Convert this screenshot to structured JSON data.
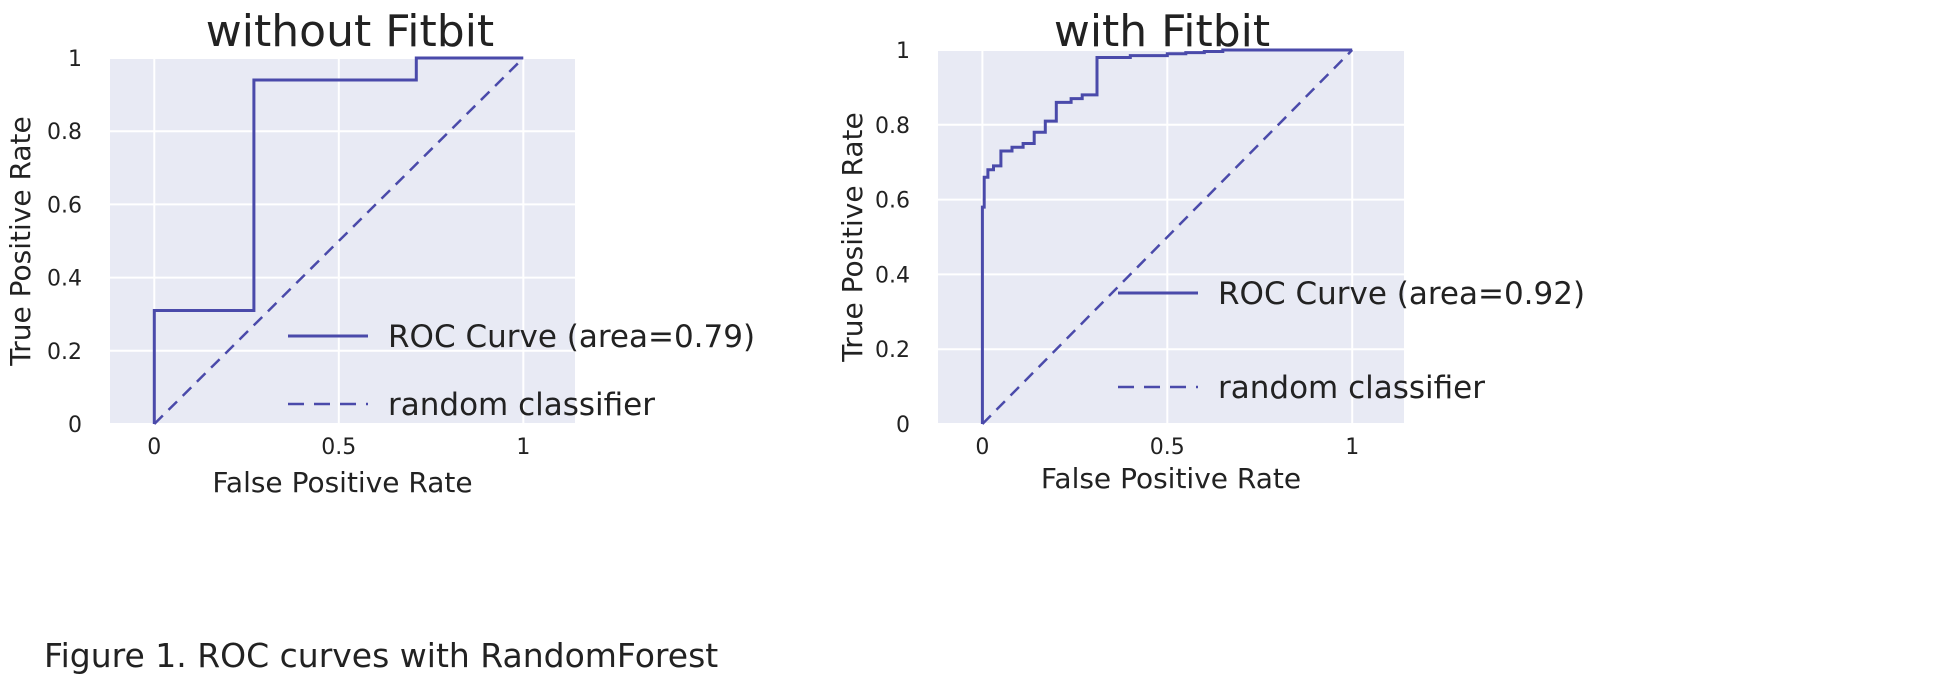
{
  "caption": "Figure 1. ROC curves with RandomForest",
  "chart_data": [
    {
      "type": "line",
      "title": "without Fitbit",
      "xlabel": "False Positive Rate",
      "ylabel": "True Positive Rate",
      "xlim": [
        -0.12,
        1.14
      ],
      "ylim": [
        0,
        1
      ],
      "xticks": [
        0,
        0.5,
        1
      ],
      "xtick_labels": [
        "0",
        "0.5",
        "1"
      ],
      "yticks": [
        0,
        0.2,
        0.4,
        0.6,
        0.8,
        1
      ],
      "ytick_labels": [
        "0",
        "0.2",
        "0.4",
        "0.6",
        "0.8",
        "1"
      ],
      "grid": true,
      "legend": "bottom-right",
      "series": [
        {
          "name": "ROC Curve (area=0.79)",
          "style": "solid",
          "color": "#4a4aaa",
          "x": [
            0,
            0,
            0.27,
            0.27,
            0.71,
            0.71,
            1
          ],
          "y": [
            0,
            0.31,
            0.31,
            0.94,
            0.94,
            1,
            1
          ]
        },
        {
          "name": "random classifier",
          "style": "dashed",
          "color": "#4a4aaa",
          "x": [
            0,
            1
          ],
          "y": [
            0,
            1
          ]
        }
      ]
    },
    {
      "type": "line",
      "title": "with Fitbit",
      "xlabel": "False Positive Rate",
      "ylabel": "True Positive Rate",
      "xlim": [
        -0.12,
        1.14
      ],
      "ylim": [
        0,
        1
      ],
      "xticks": [
        0,
        0.5,
        1
      ],
      "xtick_labels": [
        "0",
        "0.5",
        "1"
      ],
      "yticks": [
        0,
        0.2,
        0.4,
        0.6,
        0.8,
        1
      ],
      "ytick_labels": [
        "0",
        "0.2",
        "0.4",
        "0.6",
        "0.8",
        "1"
      ],
      "grid": true,
      "legend": "bottom-right",
      "series": [
        {
          "name": "ROC Curve (area=0.92)",
          "style": "solid",
          "color": "#4a4aaa",
          "x": [
            0,
            0,
            0.005,
            0.005,
            0.015,
            0.015,
            0.03,
            0.03,
            0.05,
            0.05,
            0.08,
            0.08,
            0.11,
            0.11,
            0.14,
            0.14,
            0.17,
            0.17,
            0.2,
            0.2,
            0.24,
            0.24,
            0.27,
            0.27,
            0.31,
            0.31,
            0.4,
            0.4,
            0.5,
            0.5,
            0.55,
            0.55,
            0.6,
            0.6,
            0.65,
            0.65,
            0.7,
            1
          ],
          "y": [
            0,
            0.58,
            0.58,
            0.66,
            0.66,
            0.68,
            0.68,
            0.69,
            0.69,
            0.73,
            0.73,
            0.74,
            0.74,
            0.75,
            0.75,
            0.78,
            0.78,
            0.81,
            0.81,
            0.86,
            0.86,
            0.87,
            0.87,
            0.88,
            0.88,
            0.98,
            0.98,
            0.985,
            0.985,
            0.99,
            0.99,
            0.993,
            0.993,
            0.996,
            0.996,
            1,
            1,
            1
          ]
        },
        {
          "name": "random classifier",
          "style": "dashed",
          "color": "#4a4aaa",
          "x": [
            0,
            1
          ],
          "y": [
            0,
            1
          ]
        }
      ]
    }
  ]
}
